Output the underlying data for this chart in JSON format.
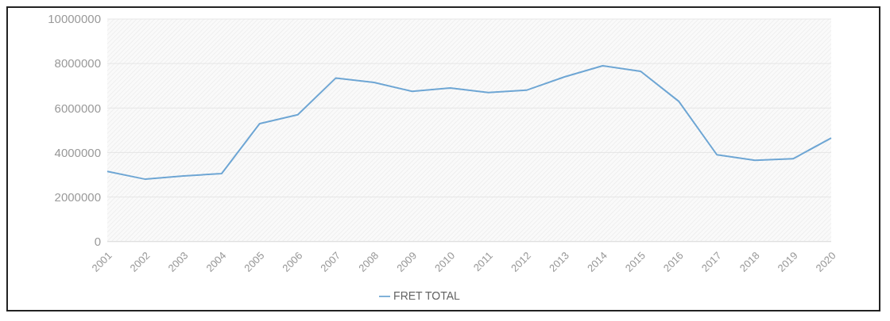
{
  "chart_data": {
    "type": "line",
    "categories": [
      "2001",
      "2002",
      "2003",
      "2004",
      "2005",
      "2006",
      "2007",
      "2008",
      "2009",
      "2010",
      "2011",
      "2012",
      "2013",
      "2014",
      "2015",
      "2016",
      "2017",
      "2018",
      "2019",
      "2020"
    ],
    "series": [
      {
        "name": "FRET TOTAL",
        "color": "#6ea6d4",
        "values": [
          3150000,
          2800000,
          2950000,
          3050000,
          5300000,
          5700000,
          7350000,
          7150000,
          6750000,
          6900000,
          6700000,
          6800000,
          7400000,
          7900000,
          7650000,
          6300000,
          3900000,
          3650000,
          3720000,
          4650000
        ]
      }
    ],
    "ylim": [
      0,
      10000000
    ],
    "yticks": [
      0,
      2000000,
      4000000,
      6000000,
      8000000,
      10000000
    ],
    "grid": "y",
    "legend": "bottom",
    "marker": "none",
    "line_style": "solid"
  }
}
